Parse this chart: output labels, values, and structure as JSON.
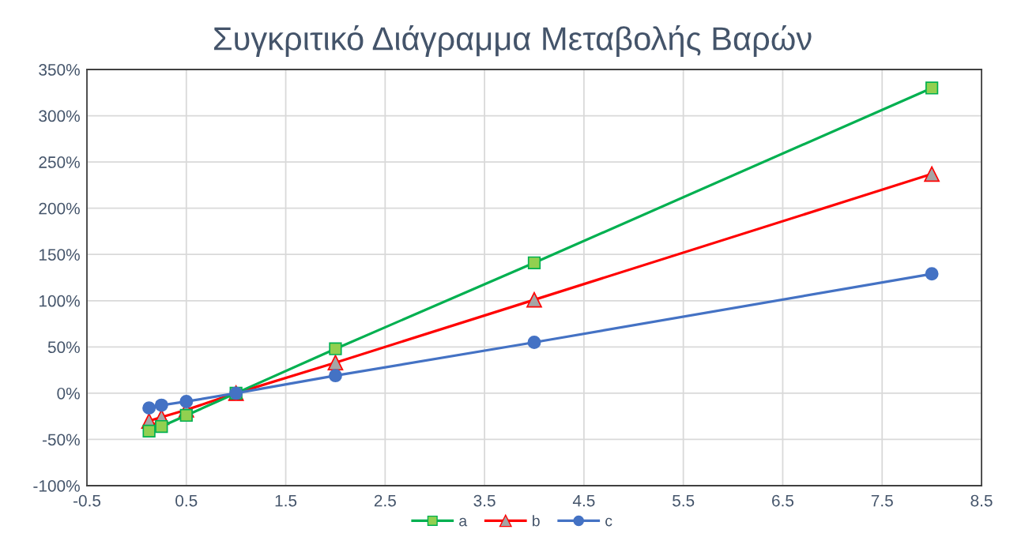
{
  "chart_data": {
    "type": "line",
    "title": "Συγκριτικό Διάγραμμα Μεταβολής Βαρών",
    "x": [
      0.125,
      0.25,
      0.5,
      1,
      2,
      4,
      8
    ],
    "series": [
      {
        "name": "a",
        "color": "#00b050",
        "colors": [
          "#92d050",
          "#92d050",
          "#92d050",
          "#92d050",
          "#92d050",
          "#92d050",
          "#92d050"
        ],
        "marker": "square",
        "values": [
          -41,
          -36,
          -24,
          0,
          48,
          141,
          330
        ]
      },
      {
        "name": "b",
        "color": "#ff0000",
        "colors": [
          "#a5a5a5",
          "#a5a5a5",
          "#a5a5a5",
          "#a5a5a5",
          "#a5a5a5",
          "#a5a5a5",
          "#a5a5a5"
        ],
        "marker": "triangle",
        "values": [
          -30,
          -26,
          -18,
          0,
          33,
          101,
          237
        ]
      },
      {
        "name": "c",
        "color": "#4472c4",
        "marker": "circle",
        "values": [
          -16,
          -13,
          -9,
          0,
          19,
          55,
          129
        ]
      }
    ],
    "xlim": [
      -0.5,
      8.5
    ],
    "xticks": [
      -0.5,
      0.5,
      1.5,
      2.5,
      3.5,
      4.5,
      5.5,
      6.5,
      7.5,
      8.5
    ],
    "ylim": [
      -100,
      350
    ],
    "yticks": [
      {
        "value": -100,
        "label": "-100%"
      },
      {
        "value": -50,
        "label": "-50%"
      },
      {
        "value": 0,
        "label": "0%"
      },
      {
        "value": 50,
        "label": "50%"
      },
      {
        "value": 100,
        "label": "100%"
      },
      {
        "value": 150,
        "label": "150%"
      },
      {
        "value": 200,
        "label": "200%"
      },
      {
        "value": 250,
        "label": "250%"
      },
      {
        "value": 300,
        "label": "300%"
      },
      {
        "value": 350,
        "label": "350%"
      }
    ],
    "grid": true,
    "legend": "bottom",
    "line_style": "solid"
  }
}
